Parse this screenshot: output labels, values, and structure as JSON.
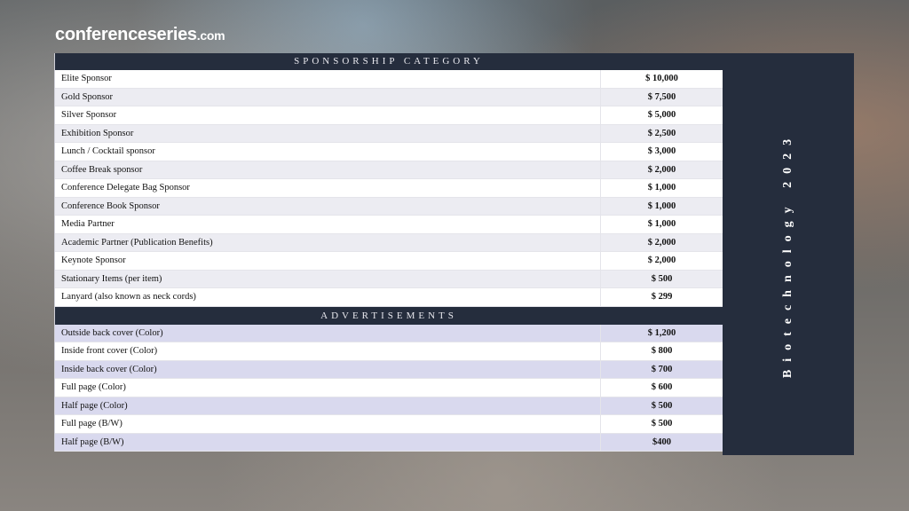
{
  "logo": {
    "main": "conferenceseries",
    "suffix": ".com"
  },
  "side_title": "Biotechnology 2023",
  "sponsorship": {
    "header": "SPONSORSHIP CATEGORY",
    "rows": [
      {
        "label": "Elite Sponsor",
        "price": "$ 10,000"
      },
      {
        "label": "Gold Sponsor",
        "price": "$ 7,500"
      },
      {
        "label": "Silver Sponsor",
        "price": "$ 5,000"
      },
      {
        "label": "Exhibition Sponsor",
        "price": "$ 2,500"
      },
      {
        "label": "Lunch / Cocktail sponsor",
        "price": "$ 3,000"
      },
      {
        "label": "Coffee Break sponsor",
        "price": "$ 2,000"
      },
      {
        "label": "Conference Delegate Bag Sponsor",
        "price": "$ 1,000"
      },
      {
        "label": "Conference Book Sponsor",
        "price": "$ 1,000"
      },
      {
        "label": "Media Partner",
        "price": "$ 1,000"
      },
      {
        "label": "Academic Partner (Publication Benefits)",
        "price": "$ 2,000"
      },
      {
        "label": "Keynote Sponsor",
        "price": "$ 2,000"
      },
      {
        "label": "Stationary Items (per item)",
        "price": "$ 500"
      },
      {
        "label": "Lanyard (also known as neck cords)",
        "price": "$ 299"
      }
    ]
  },
  "advertisements": {
    "header": "ADVERTISEMENTS",
    "rows": [
      {
        "label": "Outside back cover (Color)",
        "price": "$ 1,200"
      },
      {
        "label": "Inside front cover (Color)",
        "price": "$ 800"
      },
      {
        "label": "Inside back cover (Color)",
        "price": "$ 700"
      },
      {
        "label": "Full page (Color)",
        "price": "$ 600"
      },
      {
        "label": "Half page (Color)",
        "price": "$ 500"
      },
      {
        "label": "Full page (B/W)",
        "price": "$ 500"
      },
      {
        "label": "Half page (B/W)",
        "price": "$400"
      }
    ]
  },
  "colors": {
    "header_bg": "#252d3d",
    "row_alt": "#ececf2",
    "adv_alt": "#d9d9ee"
  }
}
